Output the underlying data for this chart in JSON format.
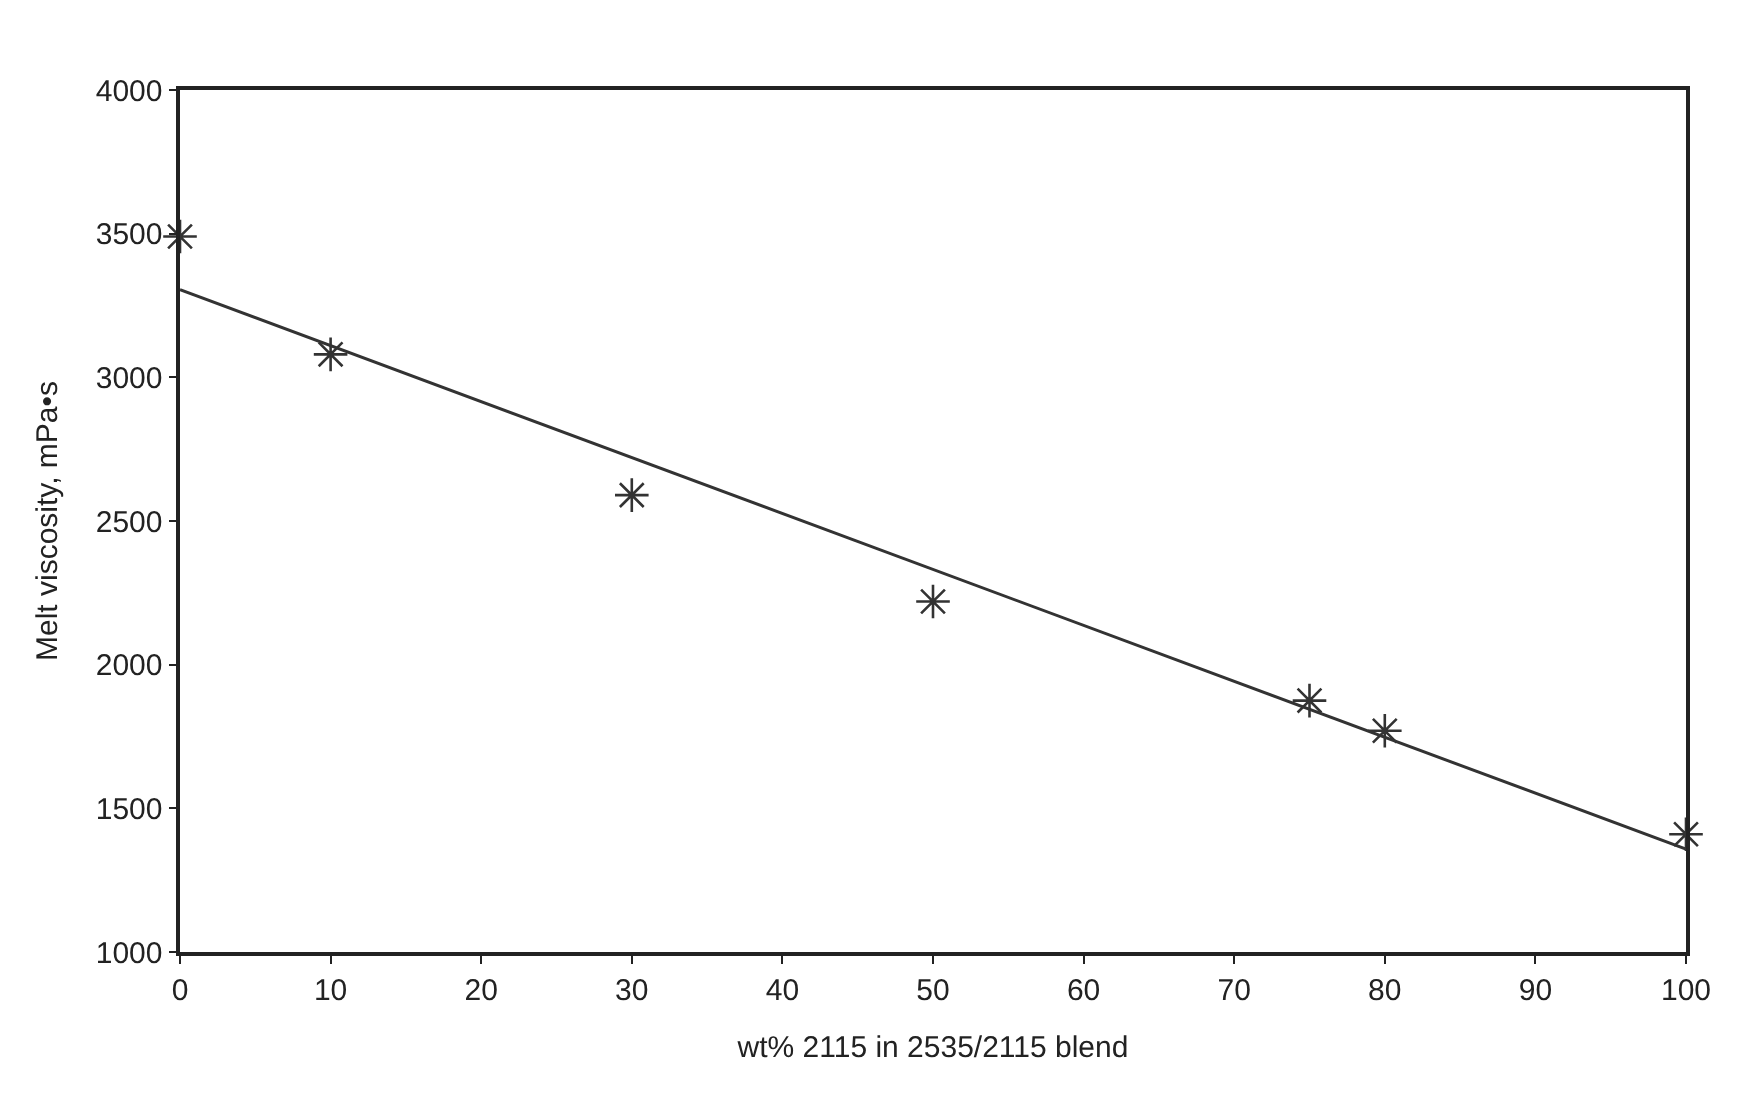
{
  "chart_data": {
    "type": "scatter",
    "xlabel": "wt% 2115 in 2535/2115 blend",
    "ylabel": "Melt viscosity, mPa•s",
    "xlim": [
      0,
      100
    ],
    "xticks": [
      0,
      10,
      20,
      30,
      40,
      50,
      60,
      70,
      80,
      90,
      100
    ],
    "ylim": [
      1000,
      4000
    ],
    "yticks": [
      1000,
      1500,
      2000,
      2500,
      3000,
      3500,
      4000
    ],
    "marker": "cross",
    "series": [
      {
        "color": "#333333",
        "x": [
          0,
          10,
          30,
          50,
          75,
          80,
          100
        ],
        "values": [
          3490,
          3080,
          2590,
          2220,
          1875,
          1770,
          1410
        ]
      },
      {
        "type": "line",
        "color": "#333333",
        "marker": "none",
        "line_style": "solid",
        "x": [
          0,
          100
        ],
        "values": [
          3305,
          1358
        ]
      }
    ]
  }
}
